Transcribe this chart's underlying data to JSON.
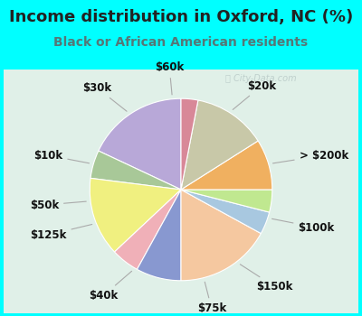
{
  "title": "Income distribution in Oxford, NC (%)",
  "subtitle": "Black or African American residents",
  "background_color": "#00FFFF",
  "chart_bg_color": "#e0f0e8",
  "labels": [
    "$20k",
    "> $200k",
    "$100k",
    "$150k",
    "$75k",
    "$40k",
    "$125k",
    "$50k",
    "$10k",
    "$30k",
    "$60k"
  ],
  "values": [
    18,
    5,
    14,
    5,
    8,
    17,
    4,
    4,
    9,
    13,
    3
  ],
  "colors": [
    "#b8a8d8",
    "#a8c898",
    "#f0f080",
    "#f0b0b8",
    "#8898d0",
    "#f5c8a0",
    "#a8c8e0",
    "#c0e890",
    "#f0b060",
    "#c8c8a8",
    "#d88898"
  ],
  "startangle": 90,
  "label_fontsize": 8.5,
  "title_fontsize": 13,
  "subtitle_fontsize": 10,
  "title_color": "#222222",
  "subtitle_color": "#557777",
  "watermark": "City-Data.com"
}
